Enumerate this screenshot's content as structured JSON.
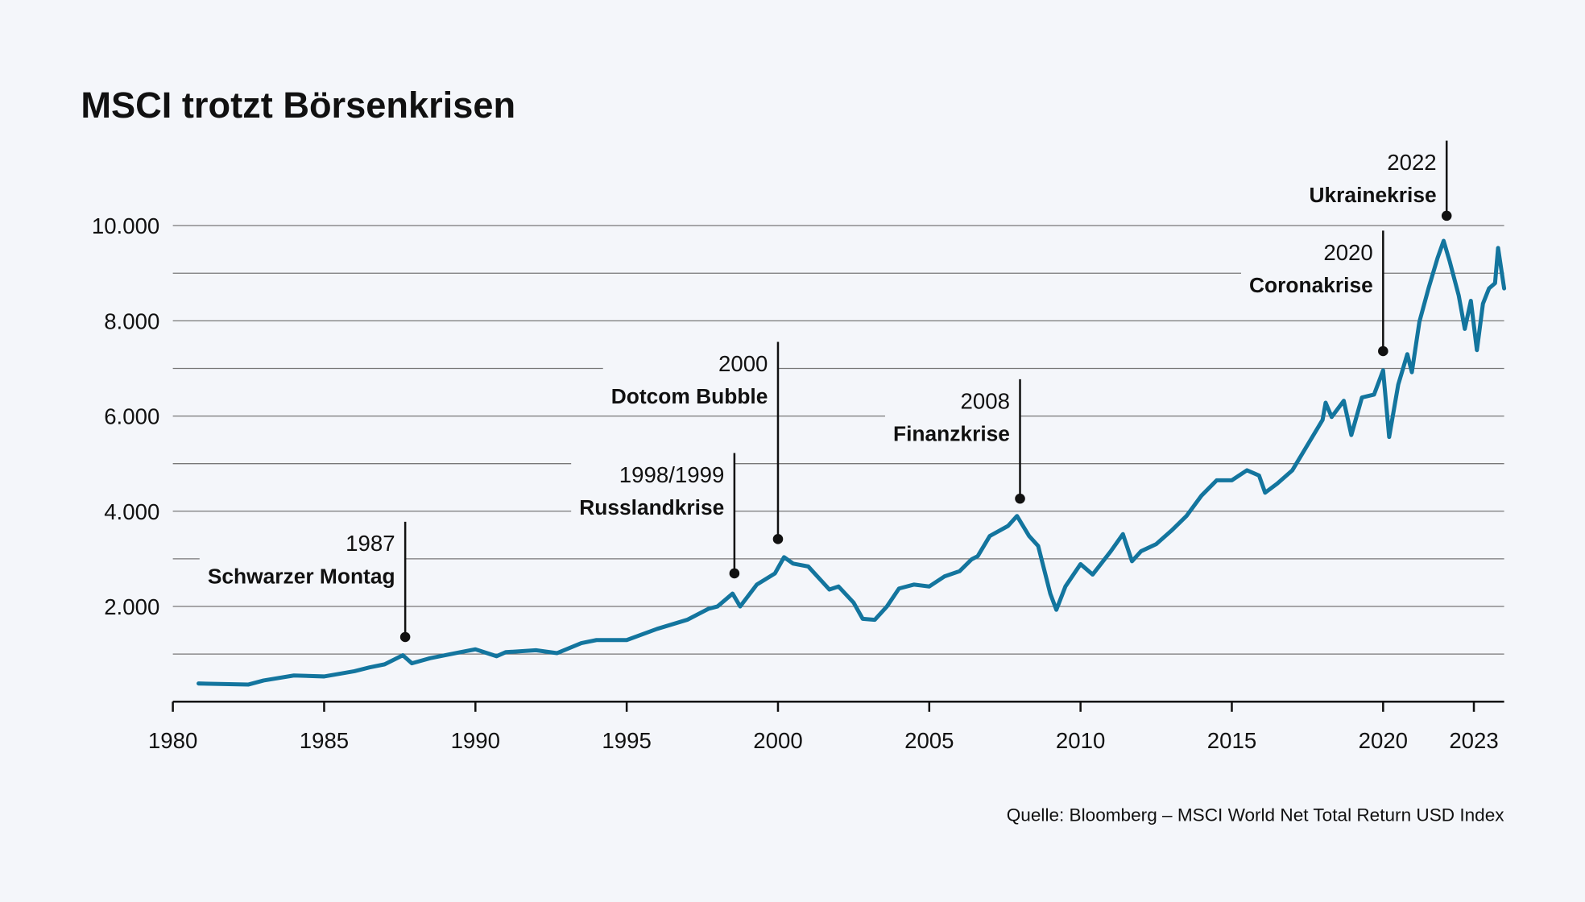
{
  "chart_data": {
    "type": "line",
    "title": "MSCI trotzt Börsenkrisen",
    "source": "Quelle: Bloomberg – MSCI World Net Total Return USD Index",
    "xlim": [
      1980,
      2024
    ],
    "xticks": [
      1980,
      1985,
      1990,
      1995,
      2000,
      2005,
      2010,
      2015,
      2020,
      2023
    ],
    "ylim": [
      0,
      10000
    ],
    "yticks": [
      {
        "value": 2000,
        "label": "2.000"
      },
      {
        "value": 4000,
        "label": "4.000"
      },
      {
        "value": 6000,
        "label": "6.000"
      },
      {
        "value": 8000,
        "label": "8.000"
      },
      {
        "value": 10000,
        "label": "10.000"
      }
    ],
    "minor_grid": [
      1000,
      3000,
      5000,
      7000,
      9000
    ],
    "grid": true,
    "series": [
      {
        "color": "#13759e",
        "x": [
          1980.85,
          1982.5,
          1983.0,
          1984.0,
          1985.0,
          1986.0,
          1986.5,
          1987.0,
          1987.6,
          1987.9,
          1988.5,
          1989.5,
          1990.0,
          1990.7,
          1991.0,
          1992.0,
          1992.7,
          1993.5,
          1994.0,
          1995.0,
          1996.0,
          1997.0,
          1997.7,
          1998.0,
          1998.5,
          1998.75,
          1999.3,
          1999.9,
          2000.2,
          2000.5,
          2001.0,
          2001.7,
          2002.0,
          2002.5,
          2002.8,
          2003.2,
          2003.6,
          2004.0,
          2004.5,
          2005.0,
          2005.5,
          2006.0,
          2006.4,
          2006.6,
          2007.0,
          2007.6,
          2007.9,
          2008.3,
          2008.6,
          2009.0,
          2009.2,
          2009.5,
          2010.0,
          2010.4,
          2011.0,
          2011.4,
          2011.7,
          2012.0,
          2012.5,
          2013.0,
          2013.5,
          2014.0,
          2014.5,
          2015.0,
          2015.5,
          2015.9,
          2016.1,
          2016.5,
          2017.0,
          2017.5,
          2018.0,
          2018.1,
          2018.3,
          2018.7,
          2018.95,
          2019.3,
          2019.7,
          2020.0,
          2020.2,
          2020.5,
          2020.8,
          2020.95,
          2021.2,
          2021.5,
          2021.8,
          2022.0,
          2022.2,
          2022.5,
          2022.7,
          2022.9,
          2023.1,
          2023.3,
          2023.5,
          2023.7,
          2023.8,
          2024.0
        ],
        "values": [
          382,
          360,
          445,
          550,
          530,
          640,
          720,
          785,
          976,
          806,
          912,
          1040,
          1100,
          955,
          1040,
          1080,
          1020,
          1230,
          1294,
          1294,
          1528,
          1720,
          1950,
          2000,
          2270,
          2000,
          2460,
          2695,
          3035,
          2900,
          2840,
          2355,
          2420,
          2080,
          1740,
          1720,
          2000,
          2377,
          2460,
          2420,
          2630,
          2740,
          2990,
          3055,
          3480,
          3690,
          3900,
          3480,
          3270,
          2270,
          1930,
          2420,
          2890,
          2670,
          3160,
          3520,
          2950,
          3160,
          3310,
          3590,
          3900,
          4330,
          4650,
          4650,
          4860,
          4750,
          4390,
          4580,
          4860,
          5390,
          5920,
          6280,
          5980,
          6320,
          5600,
          6390,
          6450,
          6960,
          5560,
          6660,
          7300,
          6920,
          7980,
          8680,
          9320,
          9680,
          9250,
          8530,
          7830,
          8420,
          7385,
          8360,
          8680,
          8790,
          9530,
          8680
        ]
      }
    ],
    "annotations": [
      {
        "x": 1987.68,
        "y": 1358,
        "year": "1987",
        "text": "Schwarzer Montag"
      },
      {
        "x": 1998.56,
        "y": 2695,
        "year": "1998/1999",
        "text": "Russlandkrise"
      },
      {
        "x": 2000.0,
        "y": 3416,
        "year": "2000",
        "text": "Dotcom Bubble"
      },
      {
        "x": 2008.0,
        "y": 4265,
        "year": "2008",
        "text": "Finanzkrise"
      },
      {
        "x": 2020.0,
        "y": 7363,
        "year": "2020",
        "text": "Coronakrise"
      },
      {
        "x": 2022.1,
        "y": 10207,
        "year": "2022",
        "text": "Ukrainekrise"
      }
    ]
  }
}
